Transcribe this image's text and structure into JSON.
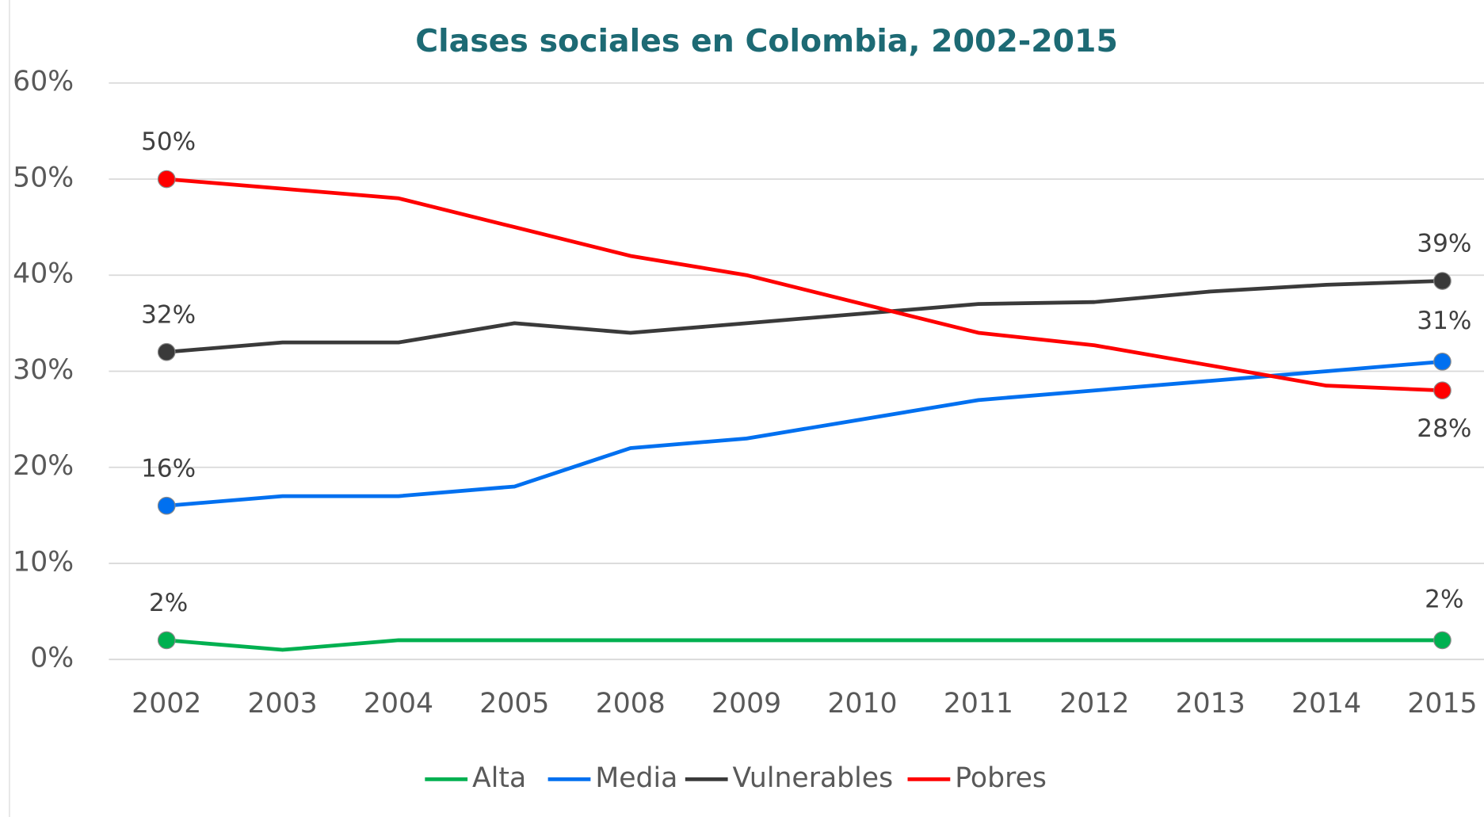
{
  "chart_data": {
    "type": "line",
    "title": "Clases sociales en Colombia, 2002-2015",
    "categories": [
      "2002",
      "2003",
      "2004",
      "2005",
      "2008",
      "2009",
      "2010",
      "2011",
      "2012",
      "2013",
      "2014",
      "2015"
    ],
    "series": [
      {
        "name": "Alta",
        "color": "#00b050",
        "values": [
          2,
          1,
          2,
          2,
          2,
          2,
          2,
          2,
          2,
          2,
          2,
          2
        ],
        "value_labels": [
          "2%",
          null,
          null,
          null,
          null,
          null,
          null,
          null,
          null,
          null,
          null,
          "2%"
        ]
      },
      {
        "name": "Media",
        "color": "#0070f0",
        "values": [
          16,
          17,
          17,
          18,
          22,
          23,
          25,
          27,
          28,
          29,
          30,
          31
        ],
        "value_labels": [
          "16%",
          null,
          null,
          null,
          null,
          null,
          null,
          null,
          null,
          null,
          null,
          "31%"
        ]
      },
      {
        "name": "Vulnerables",
        "color": "#3a3a3a",
        "values": [
          32,
          33,
          33,
          35,
          34,
          35,
          36,
          37,
          37.2,
          38.3,
          39,
          39.4
        ],
        "value_labels": [
          "32%",
          null,
          null,
          null,
          null,
          null,
          null,
          null,
          null,
          null,
          null,
          "39%"
        ]
      },
      {
        "name": "Pobres",
        "color": "#ff0000",
        "values": [
          50,
          49,
          48,
          45,
          42,
          40,
          37,
          34,
          32.7,
          30.6,
          28.5,
          28
        ],
        "value_labels": [
          "50%",
          null,
          null,
          null,
          null,
          null,
          null,
          null,
          null,
          null,
          null,
          "28%"
        ]
      }
    ],
    "ylim": [
      0,
      60
    ],
    "yticks": [
      {
        "value": 0,
        "label": "0%"
      },
      {
        "value": 10,
        "label": "10%"
      },
      {
        "value": 20,
        "label": "20%"
      },
      {
        "value": 30,
        "label": "30%"
      },
      {
        "value": 40,
        "label": "40%"
      },
      {
        "value": 50,
        "label": "50%"
      },
      {
        "value": 60,
        "label": "60%"
      }
    ],
    "grid": true,
    "legend": "bottom"
  }
}
